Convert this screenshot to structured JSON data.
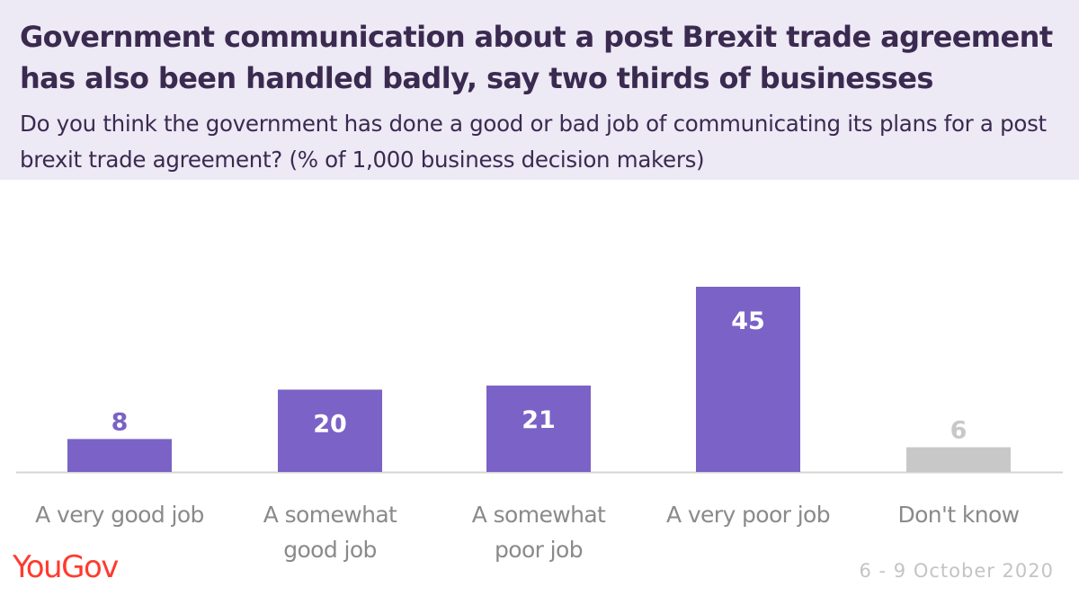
{
  "header": {
    "title": "Government communication about a post Brexit trade agreement has also been handled badly, say two thirds of businesses",
    "subtitle": "Do you think the government has done a good or bad job of communicating its plans for a post brexit trade agreement? (% of 1,000 business decision makers)"
  },
  "footer": {
    "logo": "YouGov",
    "dates": "6 - 9 October 2020"
  },
  "chart_data": {
    "type": "bar",
    "categories": [
      "A very good job",
      "A somewhat good job",
      "A somewhat poor job",
      "A very poor job",
      "Don't know"
    ],
    "category_lines": [
      [
        "A very good job"
      ],
      [
        "A somewhat",
        "good job"
      ],
      [
        "A somewhat",
        "poor job"
      ],
      [
        "A very poor job"
      ],
      [
        "Don't know"
      ]
    ],
    "values": [
      8,
      20,
      21,
      45,
      6
    ],
    "bar_colors": [
      "#7b62c6",
      "#7b62c6",
      "#7b62c6",
      "#7b62c6",
      "#c8c8c8"
    ],
    "label_colors": [
      "#7b62c6",
      "#ffffff",
      "#ffffff",
      "#ffffff",
      "#c8c8c8"
    ],
    "label_inside": [
      false,
      true,
      true,
      true,
      false
    ],
    "ylim": [
      0,
      45
    ],
    "grid": false,
    "baseline_color": "#d4d4d4",
    "category_color": "#8a8a8a"
  }
}
